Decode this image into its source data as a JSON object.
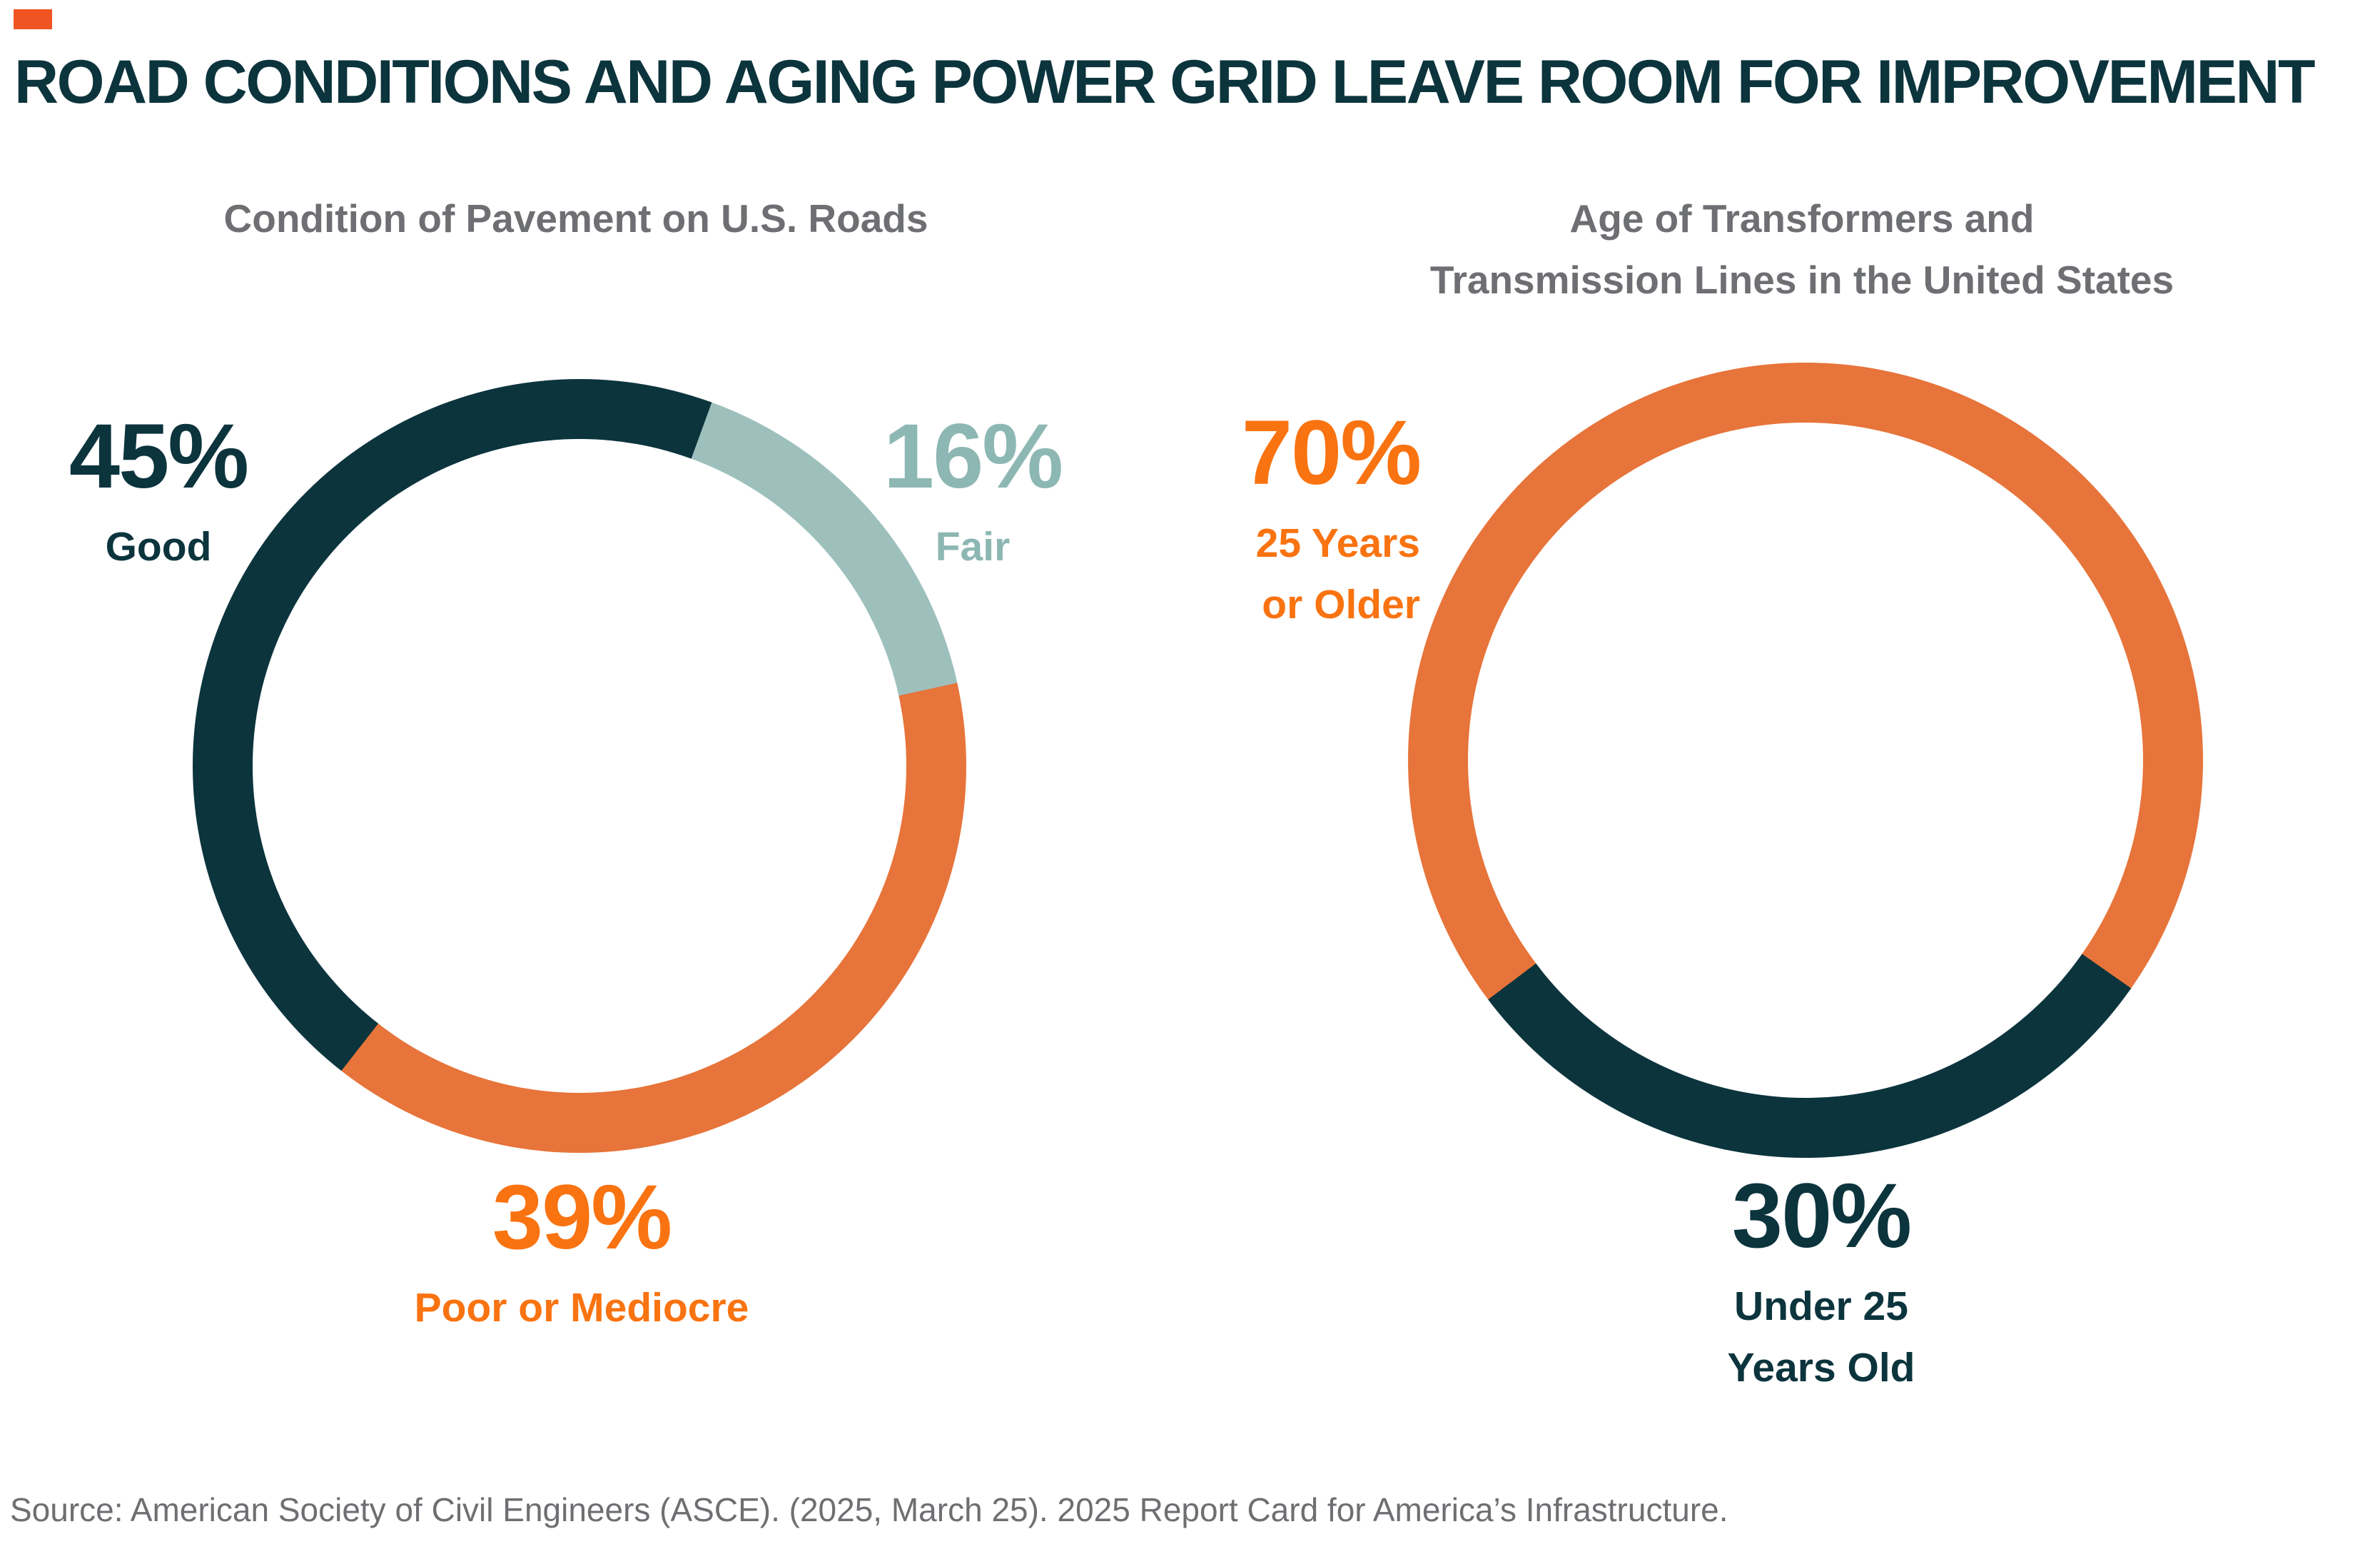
{
  "page": {
    "background": "#ffffff",
    "accent_square_color": "#f05423",
    "title": "ROAD CONDITIONS AND AGING POWER GRID LEAVE ROOM FOR IMPROVEMENT",
    "title_color": "#0c343d",
    "subtitle_color": "#6e6f72",
    "source": "Source: American Society of Civil Engineers (ASCE). (2025, March 25). 2025 Report Card for America’s Infrastructure."
  },
  "chart_data": [
    {
      "type": "pie",
      "variant": "donut",
      "title": "Condition of Pavement on U.S. Roads",
      "title_lines": [
        "Condition of Pavement on U.S. Roads"
      ],
      "rotation_deg": 20,
      "ring_thickness_px": 84,
      "segments": [
        {
          "label": "Fair",
          "value": 16,
          "color": "#9dc0bc"
        },
        {
          "label": "Poor or Mediocre",
          "value": 39,
          "color": "#e7743a"
        },
        {
          "label": "Good",
          "value": 45,
          "color": "#0c343d"
        }
      ],
      "callouts": [
        {
          "pct": "45%",
          "sub_lines": [
            "Good"
          ],
          "color": "#0c343d"
        },
        {
          "pct": "16%",
          "sub_lines": [
            "Fair"
          ],
          "color": "#8db7b3"
        },
        {
          "pct": "39%",
          "sub_lines": [
            "Poor or Mediocre"
          ],
          "color": "#f97311"
        }
      ]
    },
    {
      "type": "pie",
      "variant": "donut",
      "title": "Age of Transformers and Transmission Lines in the United States",
      "title_lines": [
        "Age of Transformers and",
        "Transmission Lines in the United States"
      ],
      "rotation_deg": 125,
      "ring_thickness_px": 84,
      "segments": [
        {
          "label": "Under 25 Years Old",
          "value": 30,
          "color": "#0c343d"
        },
        {
          "label": "25 Years or Older",
          "value": 70,
          "color": "#e7743a"
        }
      ],
      "callouts": [
        {
          "pct": "70%",
          "sub_lines": [
            "25 Years",
            "or Older"
          ],
          "color": "#f97311"
        },
        {
          "pct": "30%",
          "sub_lines": [
            "Under 25",
            "Years Old"
          ],
          "color": "#0c343d"
        }
      ]
    }
  ]
}
